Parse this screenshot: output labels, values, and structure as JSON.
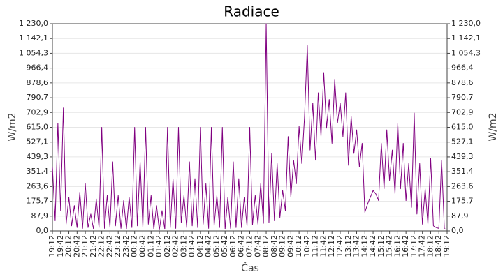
{
  "chart_data": {
    "type": "line",
    "title": "Radiace",
    "x_label": "Čas",
    "y_label": "W/m2",
    "y2_label": "W/m2",
    "grid": true,
    "ylim": [
      0,
      1230
    ],
    "y2lim": [
      0,
      1230
    ],
    "yticks": [
      {
        "value": 0,
        "label": "0,0"
      },
      {
        "value": 87.9,
        "label": "87,9"
      },
      {
        "value": 175.7,
        "label": "175,7"
      },
      {
        "value": 263.6,
        "label": "263,6"
      },
      {
        "value": 351.4,
        "label": "351,4"
      },
      {
        "value": 439.3,
        "label": "439,3"
      },
      {
        "value": 527.1,
        "label": "527,1"
      },
      {
        "value": 615,
        "label": "615,0"
      },
      {
        "value": 702.9,
        "label": "702,9"
      },
      {
        "value": 790.7,
        "label": "790,7"
      },
      {
        "value": 878.6,
        "label": "878,6"
      },
      {
        "value": 966.4,
        "label": "966,4"
      },
      {
        "value": 1054.3,
        "label": "1 054,3"
      },
      {
        "value": 1142.1,
        "label": "1 142,1"
      },
      {
        "value": 1230,
        "label": "1 230,0"
      }
    ],
    "y2ticks": [
      {
        "value": 0,
        "label": "0,0"
      },
      {
        "value": 87.9,
        "label": "87,9"
      },
      {
        "value": 175.7,
        "label": "175,7"
      },
      {
        "value": 263.6,
        "label": "263,6"
      },
      {
        "value": 351.4,
        "label": "351,4"
      },
      {
        "value": 439.3,
        "label": "439,3"
      },
      {
        "value": 527.1,
        "label": "527,1"
      },
      {
        "value": 615,
        "label": "615,0"
      },
      {
        "value": 702.9,
        "label": "702,9"
      },
      {
        "value": 790.7,
        "label": "790,7"
      },
      {
        "value": 878.6,
        "label": "878,6"
      },
      {
        "value": 966.4,
        "label": "966,4"
      },
      {
        "value": 1054.3,
        "label": "1 054,3"
      },
      {
        "value": 1142.1,
        "label": "1 142,1"
      },
      {
        "value": 1230,
        "label": "1 230,0"
      }
    ],
    "categories": [
      "19:12",
      null,
      null,
      "19:42",
      null,
      null,
      "20:12",
      null,
      null,
      "20:42",
      null,
      null,
      "21:12",
      null,
      null,
      "21:42",
      null,
      null,
      "22:12",
      null,
      null,
      "22:42",
      null,
      null,
      "23:12",
      null,
      null,
      "23:42",
      null,
      null,
      "00:12",
      null,
      null,
      "00:42",
      null,
      null,
      "01:12",
      null,
      null,
      "01:42",
      null,
      null,
      "02:12",
      null,
      null,
      "02:42",
      null,
      null,
      "03:12",
      null,
      null,
      "03:42",
      null,
      null,
      "04:12",
      null,
      null,
      "04:42",
      null,
      null,
      "05:12",
      null,
      null,
      "05:42",
      null,
      null,
      "06:12",
      null,
      null,
      "06:42",
      null,
      null,
      "07:12",
      null,
      null,
      "07:42",
      null,
      null,
      "08:12",
      null,
      null,
      "08:42",
      null,
      null,
      "09:12",
      null,
      null,
      "09:42",
      null,
      null,
      "10:12",
      null,
      null,
      "10:42",
      null,
      null,
      "11:12",
      null,
      null,
      "11:42",
      null,
      null,
      "12:12",
      null,
      null,
      "12:42",
      null,
      null,
      "13:12",
      null,
      null,
      "13:42",
      null,
      null,
      "14:12",
      null,
      null,
      "14:42",
      null,
      null,
      "15:12",
      null,
      null,
      "15:42",
      null,
      null,
      "16:12",
      null,
      null,
      "16:42",
      null,
      null,
      "17:12",
      null,
      null,
      "17:42",
      null,
      null,
      "18:12",
      null,
      null,
      "18:42",
      null,
      null,
      "19:12"
    ],
    "series": [
      {
        "color": "#800080",
        "values": [
          380,
          60,
          640,
          120,
          730,
          40,
          200,
          30,
          150,
          20,
          230,
          15,
          280,
          20,
          100,
          10,
          190,
          20,
          615,
          15,
          210,
          20,
          410,
          30,
          210,
          15,
          180,
          10,
          200,
          20,
          615,
          30,
          410,
          20,
          615,
          40,
          210,
          10,
          150,
          5,
          120,
          10,
          615,
          20,
          310,
          15,
          615,
          50,
          210,
          20,
          410,
          30,
          310,
          20,
          615,
          40,
          280,
          15,
          615,
          30,
          210,
          20,
          615,
          10,
          200,
          15,
          410,
          20,
          310,
          20,
          200,
          30,
          615,
          35,
          210,
          40,
          280,
          45,
          1230,
          50,
          460,
          60,
          400,
          80,
          240,
          120,
          560,
          200,
          420,
          280,
          620,
          400,
          680,
          1100,
          480,
          760,
          420,
          820,
          560,
          940,
          610,
          780,
          520,
          900,
          640,
          760,
          560,
          820,
          390,
          680,
          460,
          600,
          380,
          520,
          110,
          160,
          200,
          240,
          220,
          180,
          520,
          250,
          600,
          300,
          480,
          220,
          640,
          250,
          520,
          180,
          400,
          140,
          700,
          100,
          400,
          40,
          250,
          40,
          430,
          30,
          20,
          15,
          420,
          12,
          10
        ]
      }
    ]
  }
}
